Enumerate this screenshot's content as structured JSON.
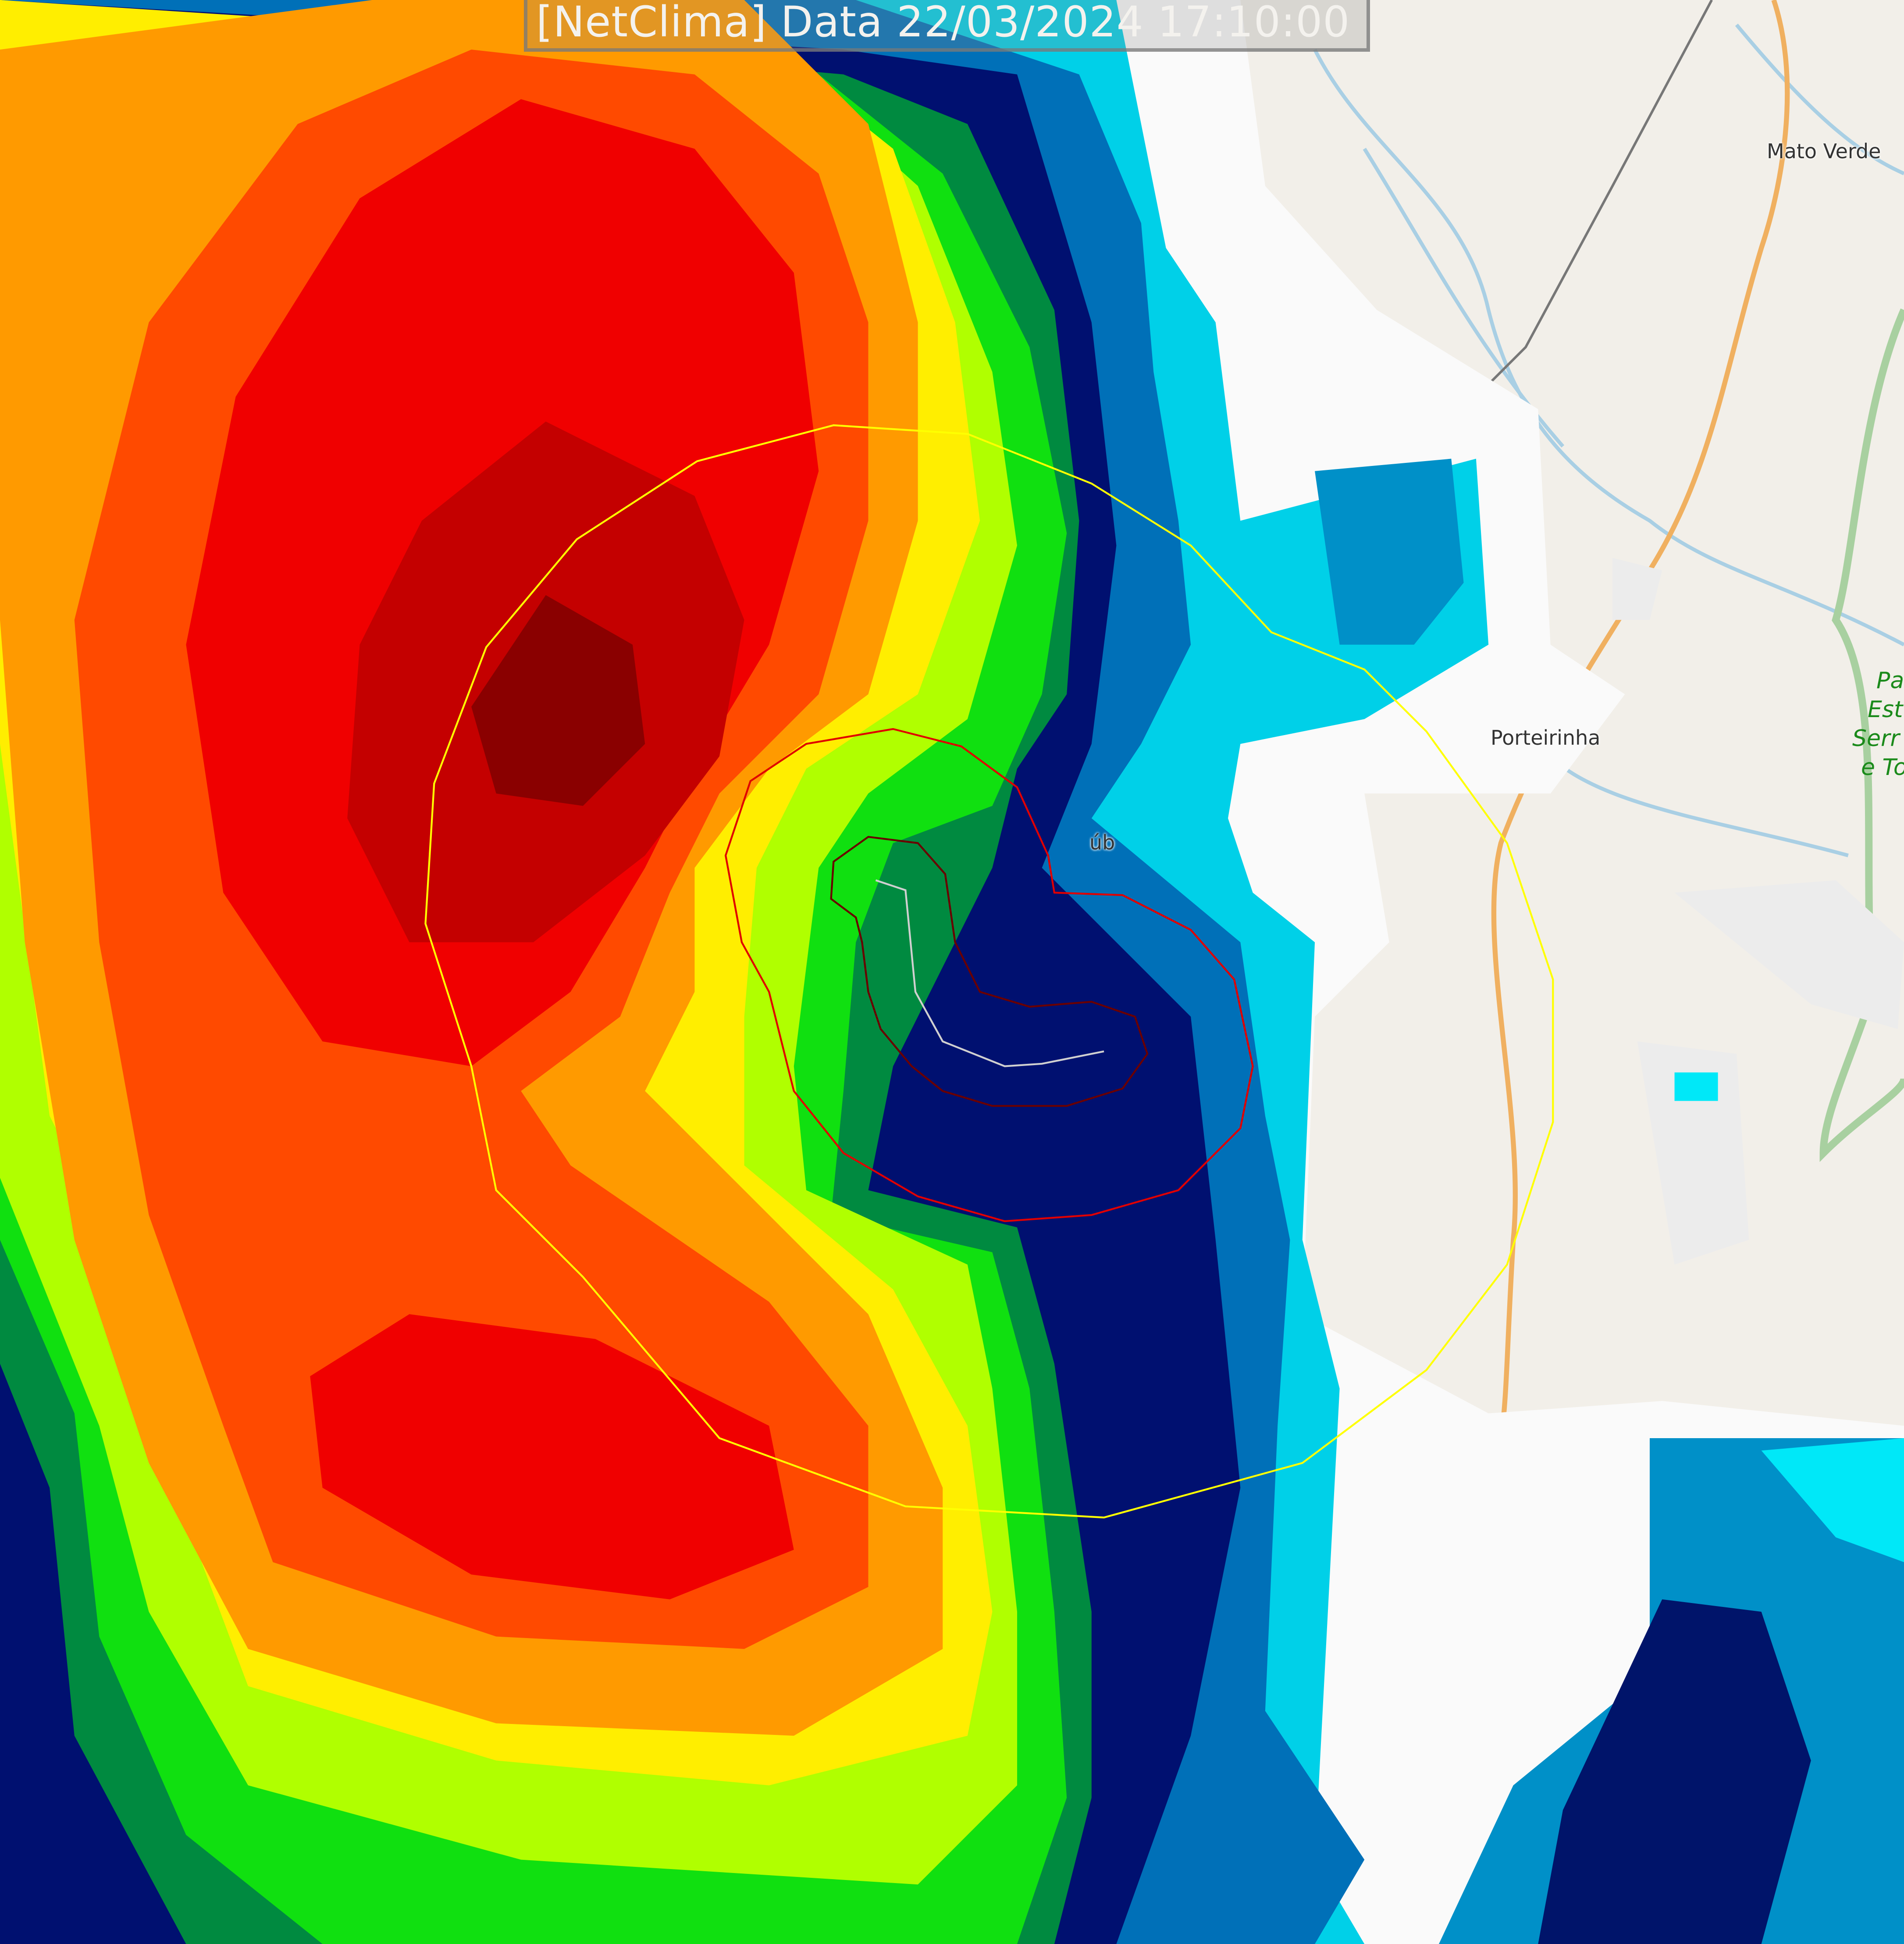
{
  "header": {
    "title": "[NetClima] Data 22/03/2024 17:10:00"
  },
  "places": {
    "mato_verde": "Mato Verde",
    "porteirinha": "Porteirinha",
    "partial_town": "úb",
    "park_lines": [
      "Pa",
      "Est",
      "Serr",
      "e To"
    ]
  },
  "radar_colors": {
    "darkest": "#800000",
    "dark_red": "#c00000",
    "red": "#ff0000",
    "orange_red": "#ff4000",
    "orange": "#ff9000",
    "yellow": "#ffff00",
    "lime": "#a0ff00",
    "green": "#00e000",
    "dark_green": "#007a30",
    "navy": "#000070",
    "blue": "#0060b0",
    "teal": "#0098c8",
    "cyan": "#00e0f0"
  },
  "overlays": {
    "outer_ring_color": "#ffff00",
    "inner_ring_color": "#e00000",
    "track_color": "#c0c0c0"
  }
}
